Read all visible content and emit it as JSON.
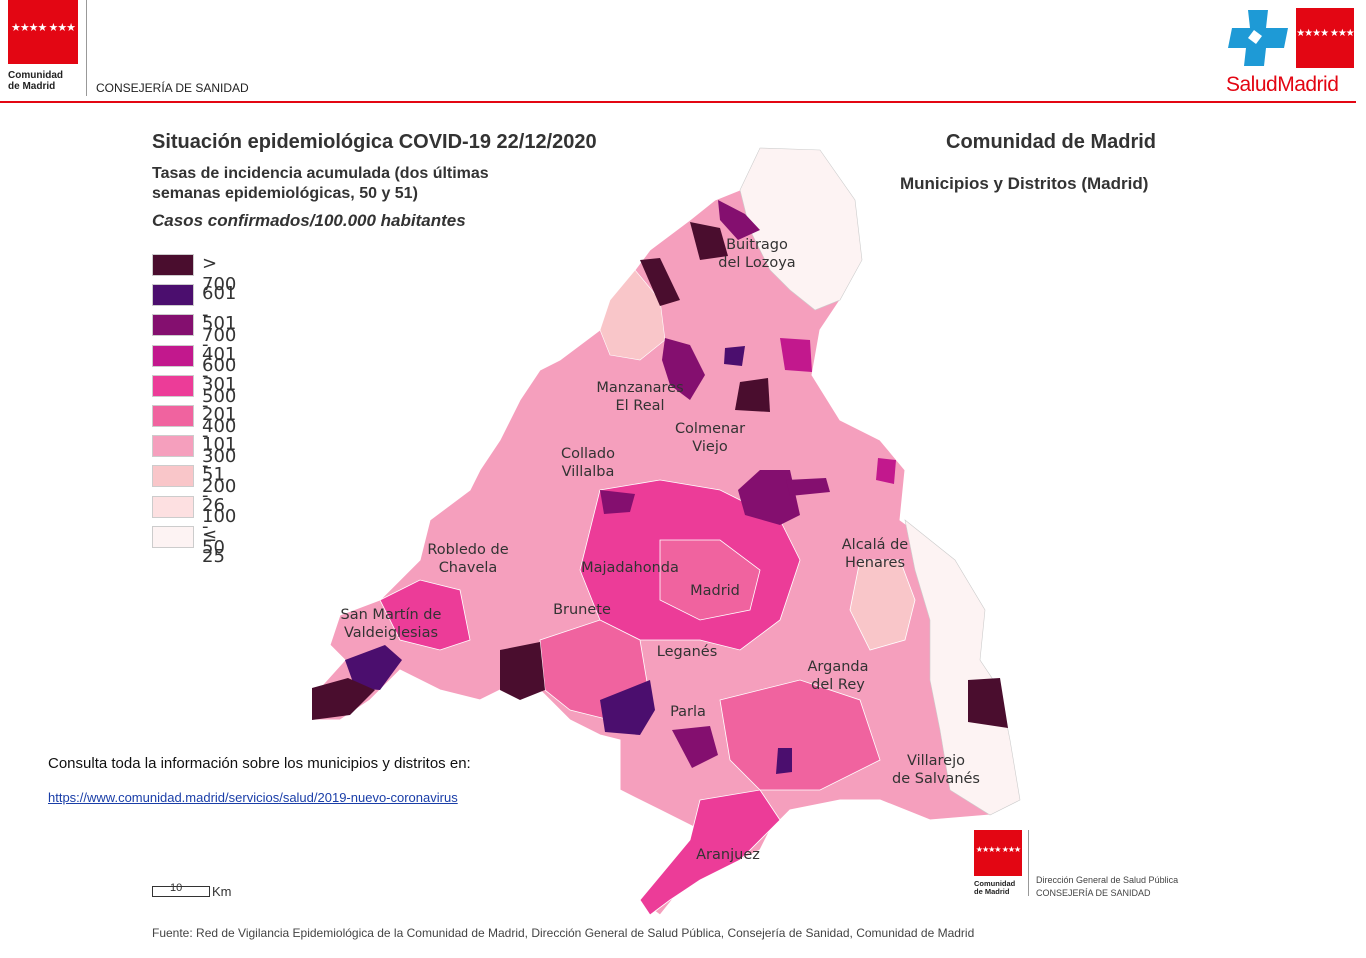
{
  "header": {
    "logo_stars": "★★★★ ★★★",
    "org_name_line1": "Comunidad",
    "org_name_line2": "de Madrid",
    "department": "CONSEJERÍA DE SANIDAD",
    "brand_logo_stars": "★★★★ ★★★",
    "brand": "SaludMadrid",
    "brand_color": "#e30613"
  },
  "title": "Situación epidemiológica COVID-19  22/12/2020",
  "subtitle": "Tasas de incidencia acumulada (dos últimas semanas epidemiológicas, 50 y 51)",
  "cases_unit": "Casos confirmados/100.000 habitantes",
  "region_title": "Comunidad de Madrid",
  "region_subtitle": "Municipios y Distritos (Madrid)",
  "legend": [
    {
      "label": "> 700",
      "color": "#4a0d2e"
    },
    {
      "label": "601 - 700",
      "color": "#4b0e6e"
    },
    {
      "label": "501 - 600",
      "color": "#840f6f"
    },
    {
      "label": "401 - 500",
      "color": "#c2188d"
    },
    {
      "label": "301 - 400",
      "color": "#ec3c98"
    },
    {
      "label": "201 - 300",
      "color": "#f0639f"
    },
    {
      "label": "101 - 200",
      "color": "#f59fbd"
    },
    {
      "label": "51 - 100",
      "color": "#f9c6c9"
    },
    {
      "label": "26 - 50",
      "color": "#fde0e1"
    },
    {
      "label": "≤ 25",
      "color": "#fdf3f3"
    }
  ],
  "places": {
    "buitrago": [
      "Buitrago",
      "del Lozoya"
    ],
    "manzanares": [
      "Manzanares",
      "El Real"
    ],
    "colmenar": [
      "Colmenar",
      "Viejo"
    ],
    "collado": [
      "Collado",
      "Villalba"
    ],
    "robledo": [
      "Robledo de",
      "Chavela"
    ],
    "alcala": [
      "Alcalá de",
      "Henares"
    ],
    "majadahonda": [
      "Majadahonda"
    ],
    "madrid": [
      "Madrid"
    ],
    "san_martin": [
      "San Martín de",
      "Valdeiglesias"
    ],
    "brunete": [
      "Brunete"
    ],
    "leganes": [
      "Leganés"
    ],
    "arganda": [
      "Arganda",
      "del Rey"
    ],
    "parla": [
      "Parla"
    ],
    "villarejo": [
      "Villarejo",
      "de Salvanés"
    ],
    "aranjuez": [
      "Aranjuez"
    ]
  },
  "info_text": "Consulta toda la información sobre los municipios y distritos en:",
  "info_link": "https://www.comunidad.madrid/servicios/salud/2019-nuevo-coronavirus",
  "scale": {
    "value": "10",
    "unit": "Km"
  },
  "footer_logo": {
    "stars": "★★★★ ★★★",
    "line1": "Comunidad",
    "line2": "de Madrid",
    "dg_line1": "Dirección General de Salud Pública",
    "dg_line2": "CONSEJERÍA DE SANIDAD"
  },
  "source": "Fuente: Red de Vigilancia Epidemiológica de la Comunidad de Madrid, Dirección General de Salud Pública, Consejería de Sanidad, Comunidad de Madrid"
}
